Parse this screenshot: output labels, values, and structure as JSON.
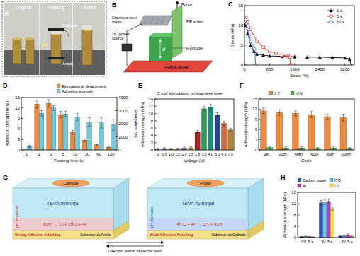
{
  "chart_data": [
    {
      "type": "line",
      "x_label": "Strain (%)",
      "y_label": "Stress (kPa)",
      "xlim": [
        0,
        3500
      ],
      "xticks": [
        0,
        800,
        1600,
        2400,
        3200
      ],
      "ylim": [
        0,
        15
      ],
      "yticks": [
        0,
        5,
        10,
        15
      ],
      "grid": false,
      "legend": "top right",
      "series": [
        {
          "name": "1 s",
          "color": "#000000",
          "marker": "triangle",
          "x": [
            0,
            50,
            100,
            200,
            300,
            400,
            600,
            800,
            1200,
            1600,
            2000,
            2400,
            2800,
            3200,
            3350,
            3400
          ],
          "values": [
            10,
            10.5,
            8,
            5,
            3.5,
            2.8,
            2.5,
            2.3,
            2.2,
            2.1,
            2,
            2,
            1.9,
            1.8,
            1.5,
            0
          ]
        },
        {
          "name": "5 s",
          "color": "#e8251f",
          "marker": "square",
          "x": [
            0,
            50,
            100,
            200,
            400,
            600,
            800,
            1000,
            1200,
            1400,
            1450,
            1460
          ],
          "values": [
            11.5,
            12,
            11,
            9,
            6,
            4.5,
            3.5,
            3,
            2.5,
            2.2,
            2,
            0
          ]
        },
        {
          "name": "60 s",
          "color": "#2253c9",
          "marker": "diamond",
          "x": [
            0,
            30,
            60,
            100,
            150,
            200,
            250,
            300,
            330,
            350
          ],
          "values": [
            12,
            11.5,
            10.5,
            9,
            7.5,
            6,
            5,
            4.3,
            4,
            0
          ]
        }
      ]
    },
    {
      "type": "bar",
      "x_label": "Treating time (s)",
      "y_label": "Adhesion strength (kPa)",
      "y2_label": "Elongation (%)",
      "categories": [
        "0",
        "1",
        "2",
        "5",
        "10",
        "30",
        "60",
        "120"
      ],
      "ylim": [
        0,
        15
      ],
      "yticks": [
        0,
        3,
        6,
        9,
        12,
        15
      ],
      "y2lim": [
        0,
        4000
      ],
      "y2ticks": [
        0,
        1000,
        2000,
        3000,
        4000
      ],
      "grid": false,
      "legend": "top",
      "series": [
        {
          "name": "Elongation at detachment",
          "color": "#f08a3c",
          "axis": "y2",
          "values": [
            0,
            3500,
            3550,
            2700,
            1350,
            750,
            400,
            200
          ],
          "errors": [
            0,
            300,
            300,
            250,
            150,
            100,
            50,
            30
          ]
        },
        {
          "name": "Adhesion strength",
          "color": "#74c9d8",
          "values": [
            1,
            10.5,
            12,
            10.3,
            9.5,
            8,
            7.8,
            7.2
          ],
          "errors": [
            0.3,
            0.8,
            0.7,
            0.8,
            1,
            1.2,
            1.5,
            1.5
          ]
        }
      ]
    },
    {
      "type": "bar",
      "title": "5 s of stimulation on stainless steel",
      "x_label": "Voltage (V)",
      "y_label": "Adhesion strength (kPa)",
      "categories": [
        "0",
        "0.5",
        "1.0",
        "1.5",
        "2.0",
        "2.5",
        "2.8",
        "3.0",
        "4.0",
        "5.0",
        "6.0",
        "7.5"
      ],
      "values": [
        0.3,
        0.4,
        0.3,
        0.3,
        0.5,
        0.6,
        5,
        11.3,
        11.8,
        9.7,
        7.3,
        5.5
      ],
      "errors": [
        0.2,
        0.2,
        0.2,
        0.2,
        0.3,
        0.3,
        0.4,
        0.6,
        0.7,
        0.5,
        0.6,
        0.4
      ],
      "colors": [
        "#c9a0dc",
        "#8e79c4",
        "#8cc63e",
        "#e7a5c7",
        "#6a6a9a",
        "#a3a33a",
        "#a0262a",
        "#2e9e5a",
        "#1f8a7a",
        "#2a3f8f",
        "#d2693a",
        "#c0802a"
      ],
      "ylim": [
        0,
        14
      ],
      "yticks": [
        0,
        2,
        4,
        6,
        8,
        10,
        12,
        14
      ],
      "grid": false
    },
    {
      "type": "bar",
      "x_label": "Cycle",
      "y_label": "Adhesion strength (kPa)",
      "categories": [
        "1st",
        "20th",
        "40th",
        "60th",
        "80th",
        "100th"
      ],
      "ylim": [
        0,
        15
      ],
      "yticks": [
        0,
        3,
        6,
        9,
        12,
        15
      ],
      "grid": false,
      "legend": "top",
      "series": [
        {
          "name": "3 V",
          "color": "#f08a3c",
          "values": [
            11.5,
            11,
            10.8,
            10.4,
            9.8,
            9.5
          ],
          "errors": [
            0.8,
            0.8,
            0.7,
            0.9,
            0.8,
            1
          ]
        },
        {
          "name": "-3 V",
          "color": "#4fb04f",
          "values": [
            0.7,
            0.6,
            0.6,
            0.5,
            0.6,
            0.5
          ],
          "errors": [
            0.3,
            0.3,
            0.3,
            0.2,
            0.3,
            0.2
          ]
        }
      ]
    },
    {
      "type": "bar",
      "y_label": "Adhesion strength (kPa)",
      "categories": [
        "0V, 5 s",
        "3V, 5 s",
        "-3V, 5 s"
      ],
      "ylim": [
        0,
        16
      ],
      "yticks": [
        0,
        4,
        8,
        12,
        16
      ],
      "grid": false,
      "legend": "top",
      "series": [
        {
          "name": "Carbon paper",
          "color": "#2f56b5",
          "values": [
            0.3,
            12.3,
            0.5
          ],
          "errors": [
            0.1,
            0.8,
            0.2
          ]
        },
        {
          "name": "ITO",
          "color": "#5ec6e8",
          "values": [
            0.4,
            12.5,
            0.6
          ],
          "errors": [
            0.1,
            0.8,
            0.2
          ]
        },
        {
          "name": "Al",
          "color": "#c13ab8",
          "values": [
            0.3,
            12.8,
            1.0
          ],
          "errors": [
            0.1,
            0.9,
            0.3
          ]
        },
        {
          "name": "Cu",
          "color": "#f2e33a",
          "values": [
            0.2,
            10,
            0.4
          ],
          "errors": [
            0.1,
            0.5,
            0.1
          ]
        }
      ]
    }
  ],
  "figure": {
    "panel_labels": [
      "A",
      "B",
      "C",
      "D",
      "E",
      "F",
      "G",
      "H"
    ],
    "photo": {
      "stages": [
        "Original",
        "Treating",
        "Treated"
      ],
      "cathode": "Cathode",
      "voltage": "3V",
      "anode": "Anode"
    },
    "setup": {
      "force": "Force",
      "mesh": "Stainless steel mesh",
      "pe": "PE sheet",
      "power": "DC power source",
      "hydrogel": "Hydrogel",
      "gap": "d",
      "pmma": "PMMA sheet"
    },
    "mechanism": {
      "boxes": [
        {
          "electrode": "Cathode",
          "gel": "TBVA hydrogel",
          "ph": "pH decrease",
          "reaction": "4OH⁻ → O₂ + 2H₂O + 4e⁻",
          "adhesion": "Strong Adhesion Attaching",
          "substrate": "Substrate as Anode"
        },
        {
          "electrode": "Anode",
          "gel": "TBVA hydrogel",
          "ph": "pH increase",
          "reaction": "4H₂O + 4e⁻ → 2H₂ + 4OH⁻",
          "adhesion": "Weak Adhesion Attaching",
          "substrate": "Substrate as Cathode"
        }
      ],
      "switch": "Direction switch of electric field"
    }
  }
}
